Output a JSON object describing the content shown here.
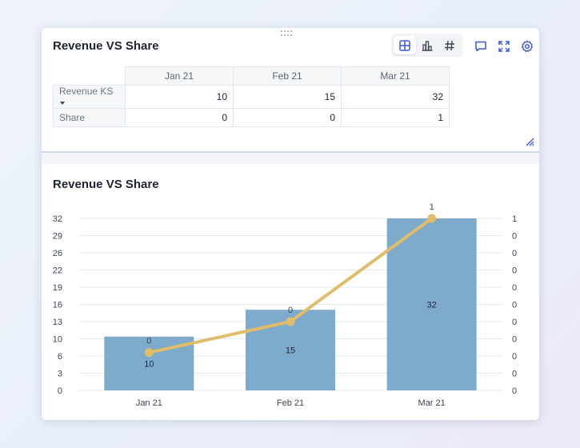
{
  "table_panel": {
    "title": "Revenue VS Share",
    "toolbar": {
      "table_icon": "table-icon",
      "chart_icon": "bar-chart-icon",
      "number_icon": "hash-icon",
      "comment_icon": "comment-icon",
      "expand_icon": "expand-icon",
      "settings_icon": "gear-icon"
    },
    "columns": [
      "Jan 21",
      "Feb 21",
      "Mar 21"
    ],
    "rows": [
      {
        "label": "Revenue KS",
        "values": [
          "10",
          "15",
          "32"
        ]
      },
      {
        "label": "Share",
        "values": [
          "0",
          "0",
          "1"
        ]
      }
    ]
  },
  "chart_panel": {
    "title": "Revenue VS Share"
  },
  "chart_data": {
    "type": "bar",
    "title": "Revenue VS Share",
    "categories": [
      "Jan 21",
      "Feb 21",
      "Mar 21"
    ],
    "series": [
      {
        "type": "bar",
        "values": [
          10,
          15,
          32
        ],
        "color": "#7eabcb"
      },
      {
        "type": "line",
        "values": [
          0.22,
          0.4,
          1
        ],
        "labels": [
          "0",
          "0",
          "1"
        ],
        "color": "#e0bd6b"
      }
    ],
    "left_ticks": [
      "32",
      "29",
      "26",
      "22",
      "19",
      "16",
      "13",
      "10",
      "6",
      "3",
      "0"
    ],
    "left_ylim": [
      0,
      32
    ],
    "right_ticks": [
      "1",
      "0",
      "0",
      "0",
      "0",
      "0",
      "0",
      "0",
      "0",
      "0",
      "0"
    ],
    "right_ylim": [
      0,
      1
    ],
    "grid": true
  }
}
